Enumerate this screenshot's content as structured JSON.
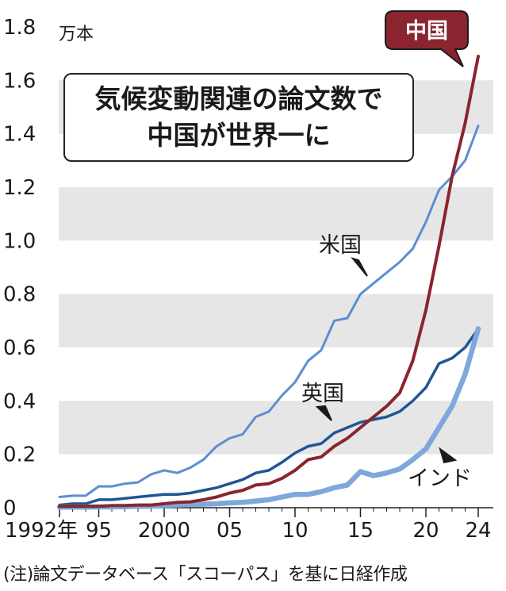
{
  "chart_data": {
    "type": "line",
    "title_lines": [
      "気候変動関連の論文数で",
      "中国が世界一に"
    ],
    "unit": "万本",
    "x": [
      1992,
      1993,
      1994,
      1995,
      1996,
      1997,
      1998,
      1999,
      2000,
      2001,
      2002,
      2003,
      2004,
      2005,
      2006,
      2007,
      2008,
      2009,
      2010,
      2011,
      2012,
      2013,
      2014,
      2015,
      2016,
      2017,
      2018,
      2019,
      2020,
      2021,
      2022,
      2023,
      2024
    ],
    "x_ticks": [
      {
        "value": 1992,
        "label": "1992年"
      },
      {
        "value": 1995,
        "label": "95"
      },
      {
        "value": 2000,
        "label": "2000"
      },
      {
        "value": 2005,
        "label": "05"
      },
      {
        "value": 2010,
        "label": "10"
      },
      {
        "value": 2015,
        "label": "15"
      },
      {
        "value": 2020,
        "label": "20"
      },
      {
        "value": 2024,
        "label": "24"
      }
    ],
    "ylim": [
      0,
      1.8
    ],
    "y_ticks": [
      "0",
      "0.2",
      "0.4",
      "0.6",
      "0.8",
      "1.0",
      "1.2",
      "1.4",
      "1.6",
      "1.8"
    ],
    "grid": "alternating horizontal bands",
    "series": [
      {
        "name": "米国",
        "color": "#5b8fd0",
        "values": [
          0.04,
          0.045,
          0.045,
          0.08,
          0.08,
          0.09,
          0.095,
          0.125,
          0.14,
          0.13,
          0.15,
          0.18,
          0.23,
          0.26,
          0.275,
          0.34,
          0.36,
          0.42,
          0.47,
          0.55,
          0.59,
          0.7,
          0.71,
          0.8,
          0.84,
          0.88,
          0.92,
          0.97,
          1.07,
          1.19,
          1.24,
          1.3,
          1.43
        ]
      },
      {
        "name": "英国",
        "color": "#1f5596",
        "values": [
          0.01,
          0.015,
          0.015,
          0.03,
          0.03,
          0.035,
          0.04,
          0.045,
          0.05,
          0.05,
          0.055,
          0.065,
          0.075,
          0.09,
          0.105,
          0.13,
          0.14,
          0.17,
          0.205,
          0.23,
          0.24,
          0.28,
          0.3,
          0.32,
          0.33,
          0.34,
          0.36,
          0.4,
          0.45,
          0.54,
          0.56,
          0.6,
          0.67
        ]
      },
      {
        "name": "中国",
        "color": "#8a2530",
        "values": [
          0.005,
          0.005,
          0.005,
          0.005,
          0.008,
          0.008,
          0.01,
          0.01,
          0.015,
          0.02,
          0.022,
          0.03,
          0.04,
          0.055,
          0.065,
          0.085,
          0.09,
          0.11,
          0.14,
          0.18,
          0.19,
          0.23,
          0.26,
          0.3,
          0.34,
          0.38,
          0.43,
          0.55,
          0.74,
          0.98,
          1.24,
          1.44,
          1.69
        ]
      },
      {
        "name": "インド",
        "color": "#7ea8dc",
        "values": [
          0.002,
          0.002,
          0.002,
          0.003,
          0.003,
          0.004,
          0.005,
          0.006,
          0.008,
          0.01,
          0.012,
          0.013,
          0.015,
          0.018,
          0.02,
          0.025,
          0.03,
          0.04,
          0.05,
          0.05,
          0.06,
          0.075,
          0.085,
          0.135,
          0.12,
          0.13,
          0.145,
          0.18,
          0.22,
          0.3,
          0.38,
          0.5,
          0.67
        ]
      }
    ]
  },
  "source_note": "(注)論文データベース「スコーパス」を基に日経作成"
}
